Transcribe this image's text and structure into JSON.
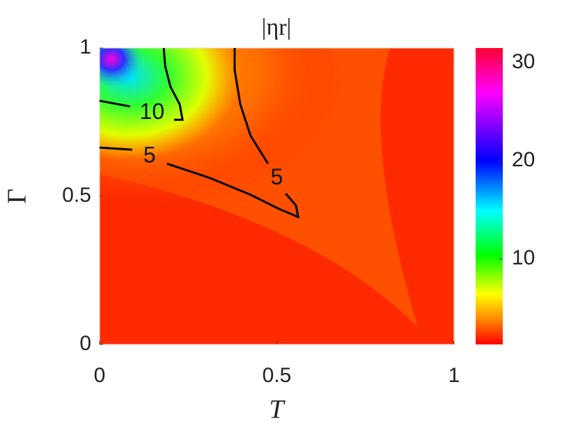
{
  "chart_data": {
    "type": "contour",
    "title": "|ηr|",
    "xlabel": "T",
    "ylabel": "Γ",
    "xlim": [
      0,
      1
    ],
    "xticks": [
      0,
      0.5,
      1
    ],
    "ylim": [
      0,
      1
    ],
    "yticks": [
      0,
      0.5,
      1
    ],
    "clim": [
      1.3,
      31.5
    ],
    "cticks": [
      10,
      20,
      30
    ],
    "contours": [
      {
        "level": 10,
        "x": [
          0,
          0.086,
          null,
          0.21,
          0.234,
          0.226,
          0.2,
          0.185,
          0.181
        ],
        "y": [
          0.822,
          0.803,
          null,
          0.758,
          0.758,
          0.81,
          0.869,
          0.939,
          1
        ]
      },
      {
        "level": 5,
        "x": [
          0,
          0.092,
          null,
          0.19,
          0.308,
          0.426,
          0.505,
          0.56,
          0.554,
          0.525,
          null,
          0.475,
          0.426,
          0.397,
          0.381,
          0.381
        ],
        "y": [
          0.664,
          0.657,
          null,
          0.61,
          0.563,
          0.505,
          0.458,
          0.43,
          0.469,
          0.509,
          null,
          0.61,
          0.704,
          0.81,
          0.927,
          1
        ]
      }
    ]
  }
}
